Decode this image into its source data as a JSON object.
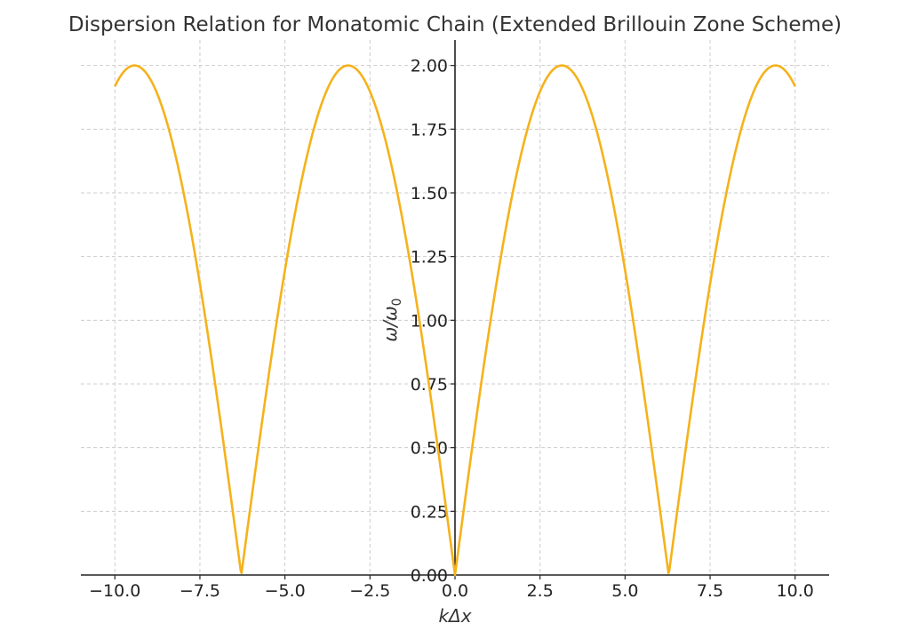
{
  "chart_data": {
    "type": "line",
    "title": "Dispersion Relation for Monatomic Chain (Extended Brillouin Zone Scheme)",
    "xlabel": "kΔx",
    "ylabel_main": "ω/ω",
    "ylabel_sub": "0",
    "xlim": [
      -11,
      11
    ],
    "ylim": [
      0,
      2.1
    ],
    "x_ticks": [
      -10,
      -7.5,
      -5,
      -2.5,
      0,
      2.5,
      5,
      7.5,
      10
    ],
    "x_tick_labels": [
      "−10.0",
      "−7.5",
      "−5.0",
      "−2.5",
      "0.0",
      "2.5",
      "5.0",
      "7.5",
      "10.0"
    ],
    "y_ticks": [
      0,
      0.25,
      0.5,
      0.75,
      1.0,
      1.25,
      1.5,
      1.75,
      2.0
    ],
    "y_tick_labels": [
      "0.00",
      "0.25",
      "0.50",
      "0.75",
      "1.00",
      "1.25",
      "1.50",
      "1.75",
      "2.00"
    ],
    "grid": true,
    "series": [
      {
        "color": "#f5b21b",
        "x": [
          -10,
          -9.5,
          -9.0,
          -8.5,
          -8.0,
          -7.5,
          -7.0,
          -6.5,
          -6.2832,
          -6.0,
          -5.5,
          -5.0,
          -4.5,
          -4.0,
          -3.5,
          -3.1416,
          -3.0,
          -2.5,
          -2.0,
          -1.5,
          -1.0,
          -0.5,
          0,
          0.5,
          1.0,
          1.5,
          2.0,
          2.5,
          3.0,
          3.1416,
          3.5,
          4.0,
          4.5,
          5.0,
          5.5,
          6.0,
          6.2832,
          6.5,
          7.0,
          7.5,
          8.0,
          8.5,
          9.0,
          9.5,
          10
        ],
        "y": [
          1.918,
          2.0,
          1.955,
          1.796,
          1.514,
          1.142,
          0.703,
          0.217,
          0.0,
          0.282,
          0.756,
          1.197,
          1.556,
          1.819,
          1.968,
          2.0,
          1.995,
          1.898,
          1.683,
          1.363,
          0.959,
          0.495,
          0.0,
          0.495,
          0.959,
          1.363,
          1.683,
          1.898,
          1.995,
          2.0,
          1.968,
          1.819,
          1.556,
          1.197,
          0.756,
          0.282,
          0.0,
          0.217,
          0.703,
          1.142,
          1.514,
          1.796,
          1.955,
          2.0,
          1.918
        ]
      }
    ]
  }
}
